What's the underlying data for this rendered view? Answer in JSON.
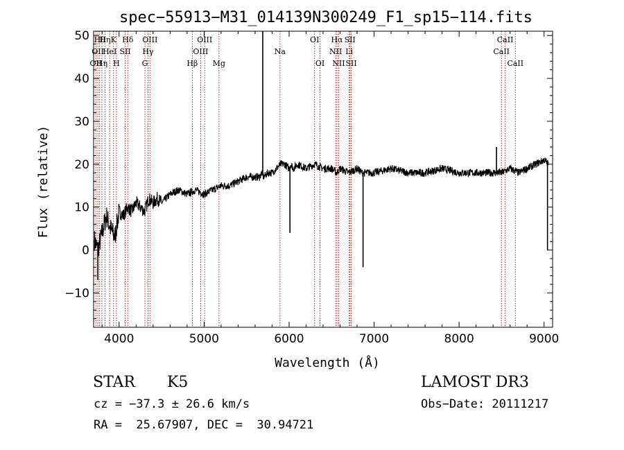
{
  "chart_data": {
    "type": "line",
    "title": "spec−55913−M31_014139N300249_F1_sp15−114.fits",
    "xlabel": "Wavelength (Å)",
    "ylabel": "Flux (relative)",
    "xlim": [
      3700,
      9100
    ],
    "ylim": [
      -18,
      51
    ],
    "xticks": [
      4000,
      5000,
      6000,
      7000,
      8000,
      9000
    ],
    "xtick_labels": [
      "4000",
      "5000",
      "6000",
      "7000",
      "8000",
      "9000"
    ],
    "yticks": [
      -10,
      0,
      10,
      20,
      30,
      40,
      50
    ],
    "ytick_labels": [
      "−10",
      "0",
      "10",
      "20",
      "30",
      "40",
      "50"
    ],
    "grid": false,
    "line_color": "#000000",
    "marker_color": "#c00000",
    "spectrum": {
      "x": [
        3700,
        3750,
        3800,
        3850,
        3900,
        3950,
        4000,
        4050,
        4100,
        4150,
        4200,
        4250,
        4300,
        4350,
        4400,
        4450,
        4500,
        4600,
        4700,
        4800,
        4900,
        5000,
        5100,
        5200,
        5300,
        5400,
        5500,
        5600,
        5650,
        5680,
        5700,
        5750,
        5800,
        5850,
        5900,
        5950,
        6000,
        6020,
        6050,
        6100,
        6200,
        6300,
        6400,
        6500,
        6560,
        6600,
        6700,
        6800,
        6860,
        6900,
        7000,
        7200,
        7400,
        7600,
        7800,
        8000,
        8200,
        8400,
        8500,
        8600,
        8700,
        8800,
        8900,
        9000,
        9050
      ],
      "y": [
        3,
        0,
        4,
        8,
        5,
        3,
        9,
        8,
        10,
        9,
        11,
        10,
        9,
        12,
        11,
        12,
        11,
        13,
        14,
        13,
        14,
        13,
        14,
        15,
        15,
        16,
        17,
        17,
        17,
        18,
        17,
        18,
        18,
        19,
        20,
        20,
        19,
        20,
        19,
        20,
        19,
        20,
        19,
        19,
        18,
        19,
        18,
        19,
        18,
        18,
        18,
        19,
        18,
        18,
        19,
        18,
        18,
        18,
        18,
        19,
        18,
        19,
        20,
        21,
        20
      ]
    },
    "spikes": [
      {
        "x": 3750,
        "y": -7
      },
      {
        "x": 5690,
        "y": 51
      },
      {
        "x": 6010,
        "y": 4
      },
      {
        "x": 6870,
        "y": -4
      },
      {
        "x": 8440,
        "y": 24
      },
      {
        "x": 9040,
        "y": 0
      }
    ],
    "lines": [
      {
        "x": 3727,
        "label": "OII",
        "row": 2
      },
      {
        "x": 3750,
        "label": "OII",
        "row": 1
      },
      {
        "x": 3771,
        "label": "Hθ",
        "row": 0
      },
      {
        "x": 3798,
        "label": "Hη",
        "row": 2
      },
      {
        "x": 3835,
        "label": "Hη",
        "row": 0
      },
      {
        "x": 3889,
        "label": "HeI",
        "row": 1
      },
      {
        "x": 3934,
        "label": "K",
        "row": 0
      },
      {
        "x": 3969,
        "label": "H",
        "row": 2
      },
      {
        "x": 4072,
        "label": "SII",
        "row": 1
      },
      {
        "x": 4102,
        "label": "Hδ",
        "row": 0
      },
      {
        "x": 4304,
        "label": "G",
        "row": 2
      },
      {
        "x": 4340,
        "label": "Hγ",
        "row": 1
      },
      {
        "x": 4363,
        "label": "OIII",
        "row": 0
      },
      {
        "x": 4861,
        "label": "Hβ",
        "row": 2
      },
      {
        "x": 4959,
        "label": "OIII",
        "row": 1
      },
      {
        "x": 5007,
        "label": "OIII",
        "row": 0
      },
      {
        "x": 5175,
        "label": "Mg",
        "row": 2
      },
      {
        "x": 5893,
        "label": "Na",
        "row": 1
      },
      {
        "x": 6300,
        "label": "OI",
        "row": 0
      },
      {
        "x": 6364,
        "label": "OI",
        "row": 2
      },
      {
        "x": 6548,
        "label": "NII",
        "row": 1
      },
      {
        "x": 6563,
        "label": "Hα",
        "row": 0
      },
      {
        "x": 6583,
        "label": "NII",
        "row": 2
      },
      {
        "x": 6707,
        "label": "Li",
        "row": 1
      },
      {
        "x": 6716,
        "label": "SII",
        "row": 0
      },
      {
        "x": 6731,
        "label": "SII",
        "row": 2
      },
      {
        "x": 8498,
        "label": "CaII",
        "row": 1
      },
      {
        "x": 8542,
        "label": "CaII",
        "row": 0
      },
      {
        "x": 8662,
        "label": "CaII",
        "row": 2
      }
    ]
  },
  "info": {
    "class_label": "STAR",
    "subclass": "K5",
    "survey": "LAMOST DR3",
    "cz": "cz = −37.3 ± 26.6 km/s",
    "obs_date": "Obs−Date: 20111217",
    "radec": "RA =  25.67907, DEC =  30.94721"
  }
}
